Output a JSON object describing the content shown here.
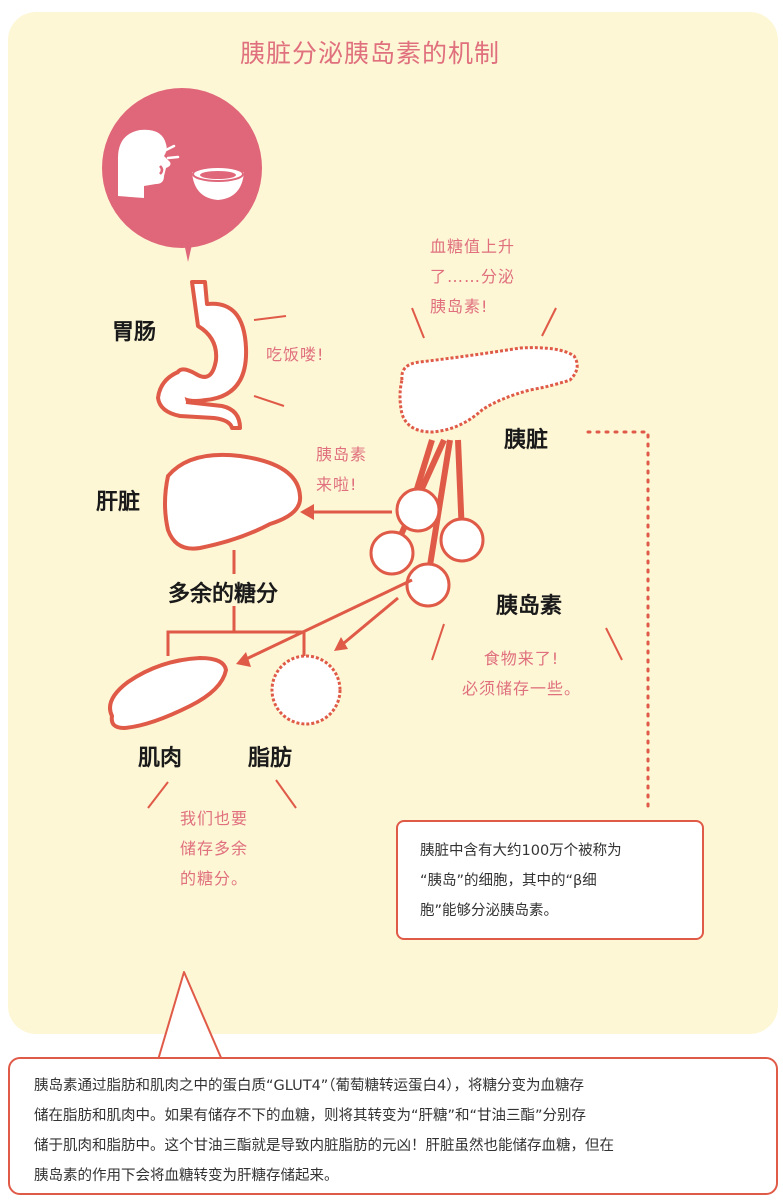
{
  "title": "胰脏分泌胰岛素的机制",
  "labels": {
    "stomach": "胃肠",
    "liver": "肝脏",
    "pancreas": "胰脏",
    "insulin": "胰岛素",
    "excess_sugar": "多余的糖分",
    "muscle": "肌肉",
    "fat": "脂肪"
  },
  "speech": {
    "eating": "吃饭喽!",
    "pancreas_lines": [
      "血糖值上升",
      "了……分泌",
      "胰岛素!"
    ],
    "insulin_coming": [
      "胰岛素",
      "来啦!"
    ],
    "food_coming": [
      "食物来了!",
      "必须储存一些。"
    ],
    "we_store": [
      "我们也要",
      "储存多余",
      "的糖分。"
    ]
  },
  "info_box": {
    "lines": [
      "胰脏中含有大约100万个被称为",
      "“胰岛”的细胞，其中的“β细",
      "胞”能够分泌胰岛素。"
    ]
  },
  "bottom_box": {
    "lines": [
      "胰岛素通过脂肪和肌肉之中的蛋白质“GLUT4”（葡萄糖转运蛋白4），将糖分变为血糖存",
      "储在脂肪和肌肉中。如果有储存不下的血糖，则将其转变为“肝糖”和“甘油三酯”分别存",
      "储于肌肉和脂肪中。这个甘油三酯就是导致内脏脂肪的元凶！肝脏虽然也能储存血糖，但在",
      "胰岛素的作用下会将血糖转变为肝糖存储起来。"
    ]
  },
  "colors": {
    "panel_bg": "#fdf7d6",
    "pink": "#e0707e",
    "organ_stroke": "#e05a48",
    "icon_bubble": "#e0667a"
  }
}
